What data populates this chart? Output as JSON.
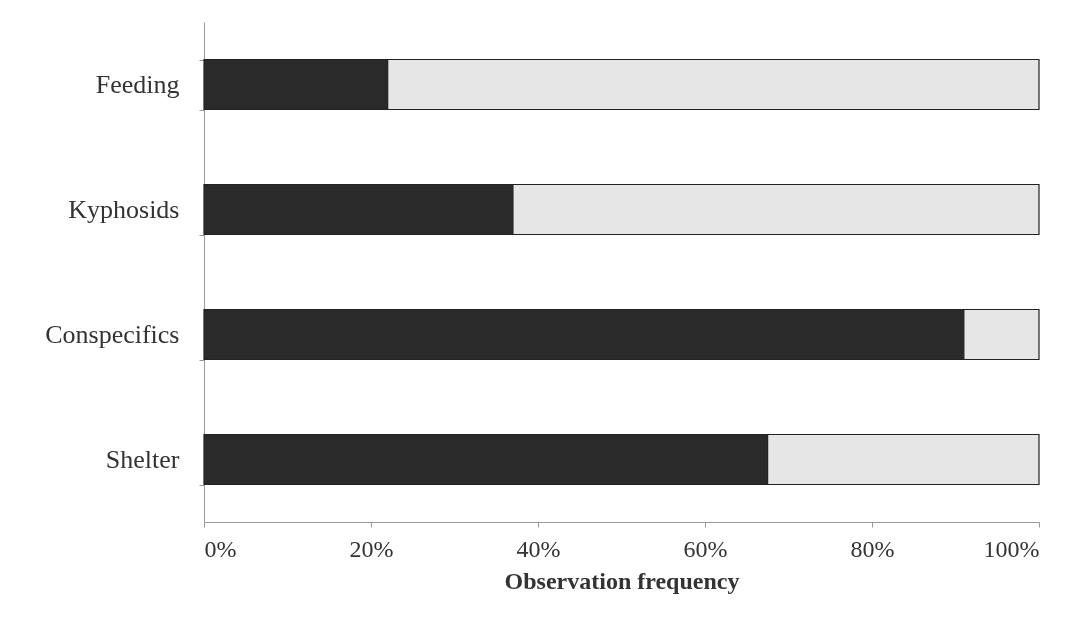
{
  "chart_data": {
    "type": "bar",
    "orientation": "horizontal",
    "stacked": true,
    "xlabel": "Observation frequency",
    "categories": [
      "Feeding",
      "Kyphosids",
      "Conspecifics",
      "Shelter"
    ],
    "series": [
      {
        "color": "#2a2a2a",
        "values": [
          22,
          37,
          91,
          67.5
        ]
      },
      {
        "color": "#e6e6e6",
        "values": [
          78,
          63,
          9,
          32.5
        ]
      }
    ],
    "xlim": [
      0,
      100
    ],
    "xticks": [
      {
        "value": 0,
        "label": "0%"
      },
      {
        "value": 20,
        "label": "20%"
      },
      {
        "value": 40,
        "label": "40%"
      },
      {
        "value": 60,
        "label": "60%"
      },
      {
        "value": 80,
        "label": "80%"
      },
      {
        "value": 100,
        "label": "100%"
      }
    ],
    "grid": false,
    "legend": false
  }
}
